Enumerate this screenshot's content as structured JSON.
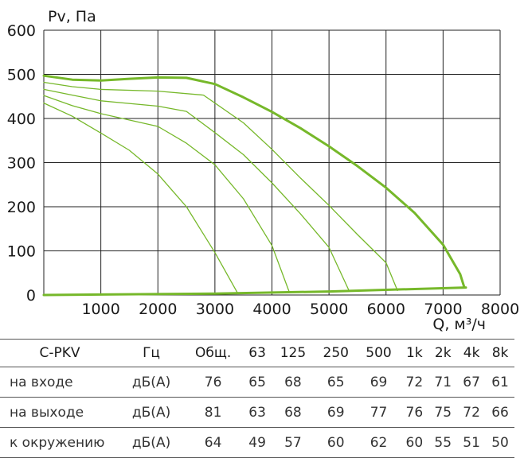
{
  "chart_data": {
    "type": "line",
    "title": "",
    "ylabel": "Pv, Па",
    "xlabel": "Q, м³/ч",
    "xlim": [
      0,
      8000
    ],
    "ylim": [
      0,
      600
    ],
    "xticks": [
      1000,
      2000,
      3000,
      4000,
      5000,
      6000,
      7000,
      8000
    ],
    "yticks": [
      0,
      100,
      200,
      300,
      400,
      500,
      600
    ],
    "grid": true,
    "color": "#76b82a",
    "series": [
      {
        "points": [
          [
            0,
            497
          ],
          [
            500,
            488
          ],
          [
            1000,
            486
          ],
          [
            1500,
            490
          ],
          [
            2000,
            493
          ],
          [
            2500,
            492
          ],
          [
            3000,
            478
          ],
          [
            3500,
            448
          ],
          [
            4000,
            415
          ],
          [
            4500,
            378
          ],
          [
            5000,
            337
          ],
          [
            5500,
            292
          ],
          [
            6000,
            243
          ],
          [
            6500,
            186
          ],
          [
            7000,
            114
          ],
          [
            7300,
            47
          ],
          [
            7370,
            18
          ]
        ]
      },
      {
        "points": [
          [
            0,
            482
          ],
          [
            500,
            472
          ],
          [
            1000,
            466
          ],
          [
            2000,
            462
          ],
          [
            2800,
            453
          ],
          [
            3500,
            390
          ],
          [
            4000,
            330
          ],
          [
            4500,
            265
          ],
          [
            5000,
            203
          ],
          [
            5500,
            137
          ],
          [
            6000,
            73
          ],
          [
            6200,
            10
          ]
        ]
      },
      {
        "points": [
          [
            0,
            466
          ],
          [
            500,
            453
          ],
          [
            1000,
            440
          ],
          [
            2000,
            428
          ],
          [
            2500,
            416
          ],
          [
            3000,
            368
          ],
          [
            3500,
            318
          ],
          [
            4000,
            254
          ],
          [
            4500,
            184
          ],
          [
            5000,
            108
          ],
          [
            5350,
            10
          ]
        ]
      },
      {
        "points": [
          [
            0,
            452
          ],
          [
            500,
            429
          ],
          [
            1000,
            411
          ],
          [
            2000,
            382
          ],
          [
            2500,
            344
          ],
          [
            3000,
            295
          ],
          [
            3500,
            218
          ],
          [
            4000,
            112
          ],
          [
            4300,
            8
          ]
        ]
      },
      {
        "points": [
          [
            0,
            435
          ],
          [
            500,
            405
          ],
          [
            1000,
            367
          ],
          [
            1500,
            328
          ],
          [
            2000,
            274
          ],
          [
            2500,
            200
          ],
          [
            3000,
            96
          ],
          [
            3400,
            4
          ]
        ]
      }
    ],
    "system_line": {
      "points": [
        [
          0,
          0
        ],
        [
          3000,
          3
        ],
        [
          5000,
          8
        ],
        [
          7400,
          17
        ]
      ]
    }
  },
  "table": {
    "header": [
      "C-PKV",
      "Гц",
      "Общ.",
      "63",
      "125",
      "250",
      "500",
      "1k",
      "2k",
      "4k",
      "8k"
    ],
    "rows": [
      [
        "на входе",
        "дБ(А)",
        "76",
        "65",
        "68",
        "65",
        "69",
        "72",
        "71",
        "67",
        "61"
      ],
      [
        "на выходе",
        "дБ(А)",
        "81",
        "63",
        "68",
        "69",
        "77",
        "76",
        "75",
        "72",
        "66"
      ],
      [
        "к окружению",
        "дБ(А)",
        "64",
        "49",
        "57",
        "60",
        "62",
        "60",
        "55",
        "51",
        "50"
      ]
    ]
  }
}
